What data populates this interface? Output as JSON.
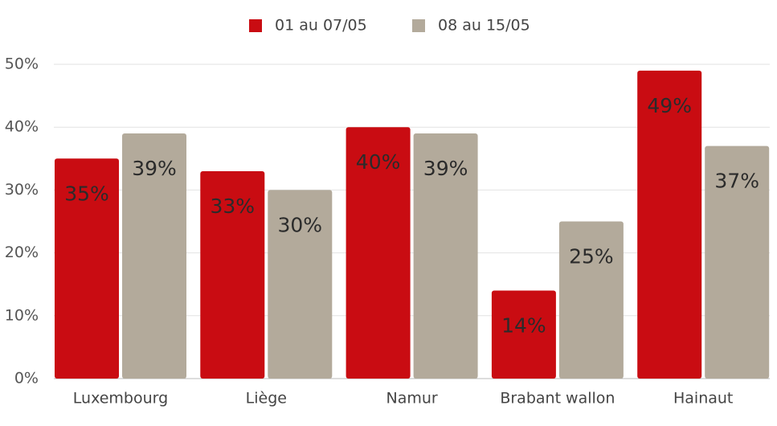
{
  "chart_data": {
    "type": "bar",
    "categories": [
      "Luxembourg",
      "Liège",
      "Namur",
      "Brabant wallon",
      "Hainaut"
    ],
    "series": [
      {
        "name": "01 au 07/05",
        "color": "#c90c12",
        "values": [
          35,
          33,
          40,
          14,
          49
        ],
        "value_labels": [
          "35%",
          "33%",
          "40%",
          "14%",
          "49%"
        ]
      },
      {
        "name": "08 au 15/05",
        "color": "#b3aa9b",
        "values": [
          39,
          30,
          39,
          25,
          37
        ],
        "value_labels": [
          "39%",
          "30%",
          "39%",
          "25%",
          "37%"
        ]
      }
    ],
    "ylim": [
      0,
      50
    ],
    "yticks": [
      {
        "value": 0,
        "label": "0%"
      },
      {
        "value": 10,
        "label": "10%"
      },
      {
        "value": 20,
        "label": "20%"
      },
      {
        "value": 30,
        "label": "30%"
      },
      {
        "value": 40,
        "label": "40%"
      },
      {
        "value": 50,
        "label": "50%"
      }
    ],
    "grid": true,
    "legend": "top"
  }
}
